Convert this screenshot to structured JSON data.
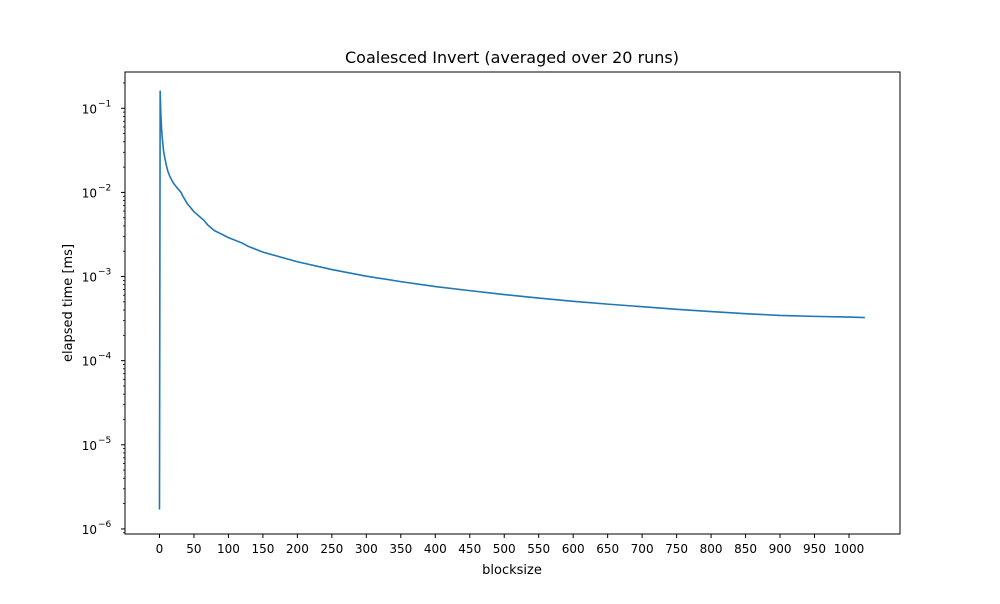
{
  "chart_data": {
    "type": "line",
    "title": "Coalesced Invert (averaged over 20 runs)",
    "xlabel": "blocksize",
    "ylabel": "elapsed time [ms]",
    "xlim": [
      -50,
      1074
    ],
    "ylim": [
      8.7e-07,
      0.27
    ],
    "yscale": "log",
    "grid": false,
    "x_ticks": [
      0,
      50,
      100,
      150,
      200,
      250,
      300,
      350,
      400,
      450,
      500,
      550,
      600,
      650,
      700,
      750,
      800,
      850,
      900,
      950,
      1000
    ],
    "y_ticks": [
      {
        "value": 1e-06,
        "base": "10",
        "exp": "−6"
      },
      {
        "value": 1e-05,
        "base": "10",
        "exp": "−5"
      },
      {
        "value": 0.0001,
        "base": "10",
        "exp": "−4"
      },
      {
        "value": 0.001,
        "base": "10",
        "exp": "−3"
      },
      {
        "value": 0.01,
        "base": "10",
        "exp": "−2"
      },
      {
        "value": 0.1,
        "base": "10",
        "exp": "−1"
      }
    ],
    "series": [
      {
        "color": "#1f77b4",
        "x": [
          0,
          1,
          2,
          3,
          4,
          5,
          6,
          8,
          10,
          12,
          15,
          20,
          25,
          30,
          32,
          33,
          40,
          50,
          60,
          64,
          70,
          80,
          90,
          100,
          120,
          128,
          150,
          200,
          250,
          300,
          350,
          400,
          450,
          500,
          550,
          600,
          650,
          700,
          750,
          800,
          850,
          900,
          950,
          1000,
          1023
        ],
        "y": [
          1.7e-06,
          0.16,
          0.085,
          0.058,
          0.045,
          0.037,
          0.031,
          0.025,
          0.021,
          0.018,
          0.0155,
          0.013,
          0.0115,
          0.0103,
          0.0098,
          0.0093,
          0.0074,
          0.0059,
          0.005,
          0.0047,
          0.0041,
          0.0035,
          0.0032,
          0.0029,
          0.0025,
          0.0023,
          0.00195,
          0.0015,
          0.00121,
          0.00101,
          0.00087,
          0.00076,
          0.00068,
          0.00061,
          0.000555,
          0.000508,
          0.00047,
          0.000438,
          0.000408,
          0.000383,
          0.000362,
          0.000345,
          0.000336,
          0.00033,
          0.000325
        ]
      }
    ]
  }
}
